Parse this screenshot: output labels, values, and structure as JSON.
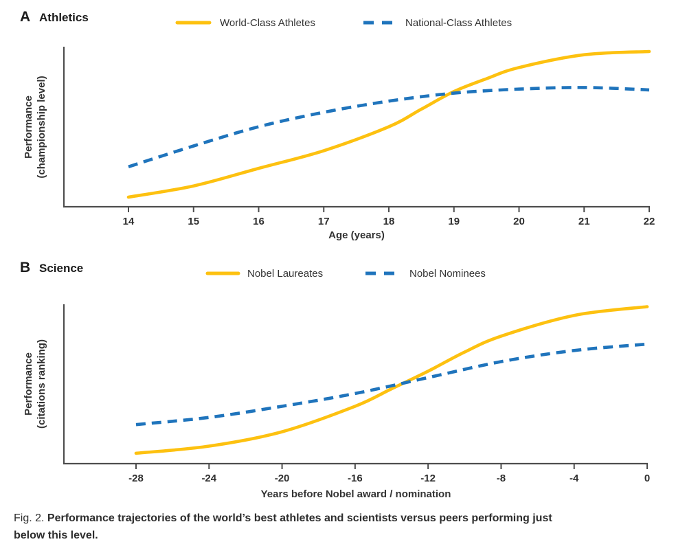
{
  "colors": {
    "world_class_yellow": "#FDC110",
    "national_class_blue": "#1F74BC",
    "axis_gray": "#4d4d4d",
    "text_dark": "#2d2d2d"
  },
  "caption": {
    "prefix": "Fig. 2.",
    "bold_line1": "Performance trajectories of the world’s best athletes and scientists versus peers performing just",
    "bold_line2": "below this level."
  },
  "chart_data": [
    {
      "id": "A",
      "type": "line",
      "panel_label": "A",
      "title": "Athletics",
      "xlabel": "Age (years)",
      "ylabel_line1": "Performance",
      "ylabel_line2": "(championship level)",
      "xlim": [
        13,
        22
      ],
      "ylim": [
        0,
        1
      ],
      "x_ticks": [
        14,
        15,
        16,
        17,
        18,
        19,
        20,
        21,
        22
      ],
      "y_ticks": [],
      "grid": false,
      "legend_position": "top",
      "series": [
        {
          "name": "World-Class Athletes",
          "style": "solid",
          "color": "#FDC110",
          "x": [
            14,
            15,
            16,
            17,
            18,
            18.5,
            19,
            19.5,
            20,
            21,
            22
          ],
          "y": [
            0.06,
            0.13,
            0.24,
            0.35,
            0.5,
            0.61,
            0.72,
            0.8,
            0.87,
            0.95,
            0.97
          ]
        },
        {
          "name": "National-Class Athletes",
          "style": "dashed",
          "color": "#1F74BC",
          "x": [
            14,
            15,
            16,
            17,
            18,
            19,
            20,
            21,
            22
          ],
          "y": [
            0.25,
            0.38,
            0.5,
            0.59,
            0.66,
            0.71,
            0.735,
            0.745,
            0.73
          ]
        }
      ]
    },
    {
      "id": "B",
      "type": "line",
      "panel_label": "B",
      "title": "Science",
      "xlabel": "Years before Nobel award / nomination",
      "ylabel_line1": "Performance",
      "ylabel_line2": "(citations ranking)",
      "xlim": [
        -31,
        0
      ],
      "ylim": [
        0,
        1
      ],
      "x_ticks": [
        -28,
        -24,
        -20,
        -16,
        -12,
        -8,
        -4,
        0
      ],
      "y_ticks": [],
      "grid": false,
      "legend_position": "top",
      "series": [
        {
          "name": "Nobel Laureates",
          "style": "solid",
          "color": "#FDC110",
          "x": [
            -28,
            -24,
            -20,
            -16,
            -14,
            -12,
            -10,
            -8,
            -4,
            0
          ],
          "y": [
            0.065,
            0.11,
            0.2,
            0.36,
            0.47,
            0.58,
            0.7,
            0.8,
            0.93,
            0.985
          ]
        },
        {
          "name": "Nobel Nominees",
          "style": "dashed",
          "color": "#1F74BC",
          "x": [
            -28,
            -24,
            -20,
            -16,
            -12,
            -8,
            -4,
            0
          ],
          "y": [
            0.245,
            0.29,
            0.36,
            0.44,
            0.54,
            0.64,
            0.71,
            0.75
          ]
        }
      ]
    }
  ]
}
